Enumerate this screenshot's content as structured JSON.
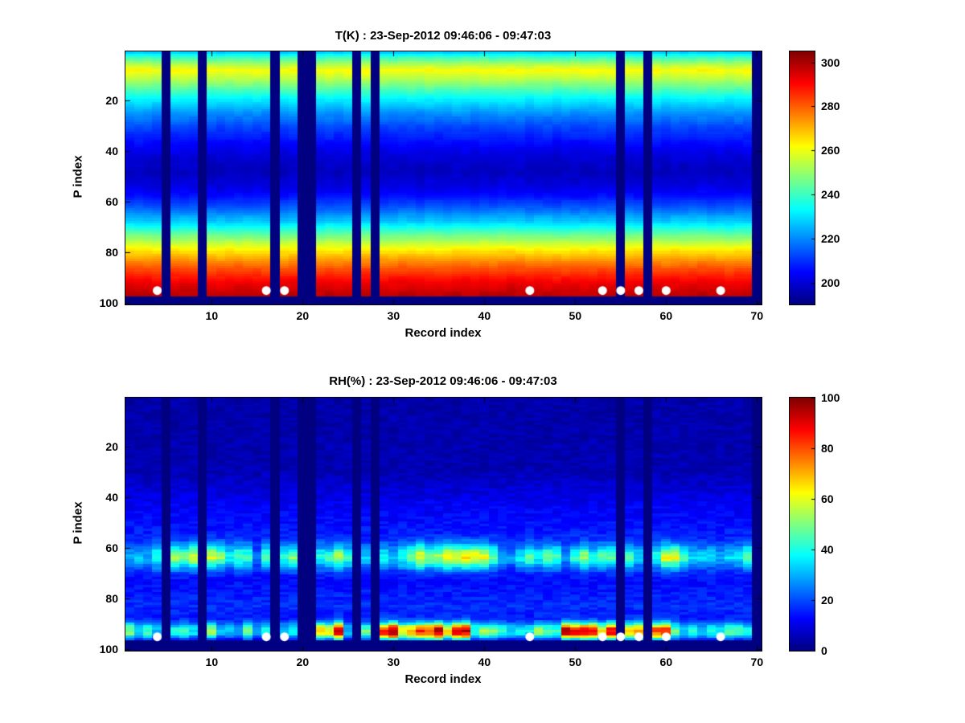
{
  "figure": {
    "background": "#ffffff"
  },
  "chart_data": [
    {
      "type": "heatmap",
      "title": "T(K) : 23-Sep-2012 09:46:06 - 09:47:03",
      "xlabel": "Record index",
      "ylabel": "P index",
      "x_range": [
        1,
        70
      ],
      "y_range": [
        1,
        100
      ],
      "y_direction": "reverse",
      "x_ticks": [
        10,
        20,
        30,
        40,
        50,
        60,
        70
      ],
      "y_ticks": [
        20,
        40,
        60,
        80,
        100
      ],
      "colormap": "jet",
      "clim": [
        190,
        305
      ],
      "colorbar_ticks": [
        200,
        220,
        240,
        260,
        280,
        300
      ],
      "missing_record_columns": [
        5,
        9,
        17,
        20,
        21,
        26,
        28,
        55,
        58,
        70
      ],
      "missing_below_p": 98,
      "marker_records": [
        4,
        16,
        18,
        45,
        53,
        55,
        57,
        60,
        66
      ],
      "marker_p": 95,
      "marker_color": "#ffffff",
      "profile_p": [
        1,
        3,
        8,
        12,
        16,
        20,
        25,
        30,
        36,
        42,
        48,
        54,
        58,
        63,
        68,
        72,
        76,
        80,
        84,
        88,
        92,
        95,
        97
      ],
      "profile_v": [
        228,
        240,
        262,
        253,
        241,
        231,
        221,
        213,
        206,
        200,
        197,
        201,
        206,
        216,
        228,
        241,
        254,
        266,
        276,
        285,
        292,
        296,
        298
      ],
      "texture_noise_amp": 2.5
    },
    {
      "type": "heatmap",
      "title": "RH(%) : 23-Sep-2012 09:46:06 - 09:47:03",
      "xlabel": "Record index",
      "ylabel": "P index",
      "x_range": [
        1,
        70
      ],
      "y_range": [
        1,
        100
      ],
      "y_direction": "reverse",
      "x_ticks": [
        10,
        20,
        30,
        40,
        50,
        60,
        70
      ],
      "y_ticks": [
        20,
        40,
        60,
        80,
        100
      ],
      "colormap": "jet",
      "clim": [
        0,
        100
      ],
      "colorbar_ticks": [
        0,
        20,
        40,
        60,
        80,
        100
      ],
      "missing_record_columns": [
        5,
        9,
        17,
        20,
        21,
        26,
        28,
        55,
        58,
        70
      ],
      "missing_below_p": 97,
      "marker_records": [
        4,
        16,
        18,
        45,
        53,
        55,
        57,
        60,
        66
      ],
      "marker_p": 95,
      "marker_color": "#ffffff",
      "profile_p": [
        1,
        30,
        36,
        42,
        48,
        55,
        60,
        64,
        68,
        73,
        78,
        83,
        88,
        91,
        94,
        96,
        97
      ],
      "profile_v": [
        4,
        5,
        8,
        11,
        13,
        15,
        15,
        18,
        14,
        13,
        15,
        17,
        14,
        17,
        16,
        8,
        4
      ],
      "band": {
        "center": 63.5,
        "sigma": 3.4,
        "min": 5,
        "range": 48
      },
      "bottom": {
        "center": 93,
        "sigma": 2.3,
        "min": 12,
        "range": 25,
        "enhanced_min": 45,
        "enhanced_range": 40,
        "enhanced_ranges": [
          [
            22,
            24
          ],
          [
            29,
            38
          ],
          [
            49,
            60
          ]
        ]
      },
      "texture_noise_amp": 4
    }
  ]
}
